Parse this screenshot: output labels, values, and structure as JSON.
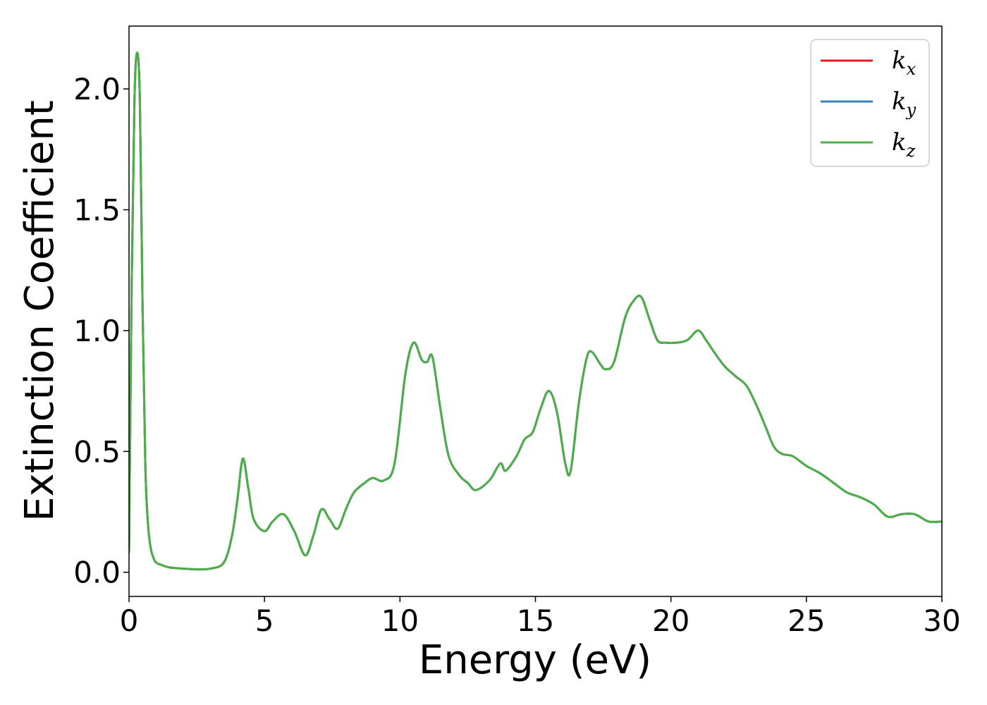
{
  "chart_data": {
    "type": "line",
    "xlabel": "Energy (eV)",
    "ylabel": "Extinction Coefficient",
    "xlim": [
      0,
      30
    ],
    "ylim": [
      -0.1,
      2.26
    ],
    "xticks": [
      0,
      5,
      10,
      15,
      20,
      25,
      30
    ],
    "xtick_labels": [
      "0",
      "5",
      "10",
      "15",
      "20",
      "25",
      "30"
    ],
    "yticks": [
      0.0,
      0.5,
      1.0,
      1.5,
      2.0
    ],
    "ytick_labels": [
      "0.0",
      "0.5",
      "1.0",
      "1.5",
      "2.0"
    ],
    "grid": false,
    "legend_position": "top-right",
    "series": [
      {
        "name": "k_x",
        "label_base": "k",
        "label_sub": "x",
        "color": "#e41a1c"
      },
      {
        "name": "k_y",
        "label_base": "k",
        "label_sub": "y",
        "color": "#377eb8"
      },
      {
        "name": "k_z",
        "label_base": "k",
        "label_sub": "z",
        "color": "#4daf4a"
      }
    ],
    "x": [
      0.0,
      0.1,
      0.2,
      0.3,
      0.4,
      0.5,
      0.6,
      0.7,
      0.8,
      0.9,
      1.0,
      1.2,
      1.5,
      2.0,
      2.5,
      3.0,
      3.5,
      3.8,
      4.0,
      4.2,
      4.4,
      4.6,
      5.0,
      5.3,
      5.7,
      6.1,
      6.5,
      6.8,
      7.1,
      7.4,
      7.7,
      8.0,
      8.3,
      8.7,
      9.0,
      9.4,
      9.8,
      10.2,
      10.5,
      10.8,
      11.0,
      11.2,
      11.5,
      11.8,
      12.2,
      12.5,
      12.8,
      13.3,
      13.7,
      13.9,
      14.3,
      14.6,
      14.9,
      15.2,
      15.5,
      15.8,
      16.1,
      16.3,
      16.6,
      16.9,
      17.1,
      17.4,
      17.6,
      17.9,
      18.3,
      18.6,
      18.9,
      19.2,
      19.5,
      19.8,
      20.2,
      20.6,
      21.0,
      21.3,
      21.6,
      22.0,
      22.4,
      22.8,
      23.2,
      23.5,
      23.8,
      24.1,
      24.5,
      25.0,
      25.5,
      26.0,
      26.5,
      27.0,
      27.5,
      28.0,
      28.5,
      29.0,
      29.5,
      30.0
    ],
    "y": [
      0.08,
      1.2,
      1.95,
      2.15,
      1.95,
      1.1,
      0.45,
      0.2,
      0.1,
      0.06,
      0.04,
      0.03,
      0.02,
      0.015,
      0.012,
      0.015,
      0.04,
      0.15,
      0.3,
      0.47,
      0.35,
      0.22,
      0.17,
      0.21,
      0.24,
      0.17,
      0.07,
      0.15,
      0.26,
      0.22,
      0.18,
      0.26,
      0.33,
      0.37,
      0.39,
      0.38,
      0.45,
      0.82,
      0.95,
      0.88,
      0.87,
      0.89,
      0.67,
      0.48,
      0.4,
      0.37,
      0.34,
      0.38,
      0.45,
      0.42,
      0.48,
      0.55,
      0.58,
      0.68,
      0.75,
      0.66,
      0.45,
      0.42,
      0.7,
      0.89,
      0.91,
      0.86,
      0.84,
      0.87,
      1.05,
      1.12,
      1.14,
      1.05,
      0.96,
      0.95,
      0.95,
      0.96,
      1.0,
      0.96,
      0.91,
      0.85,
      0.81,
      0.77,
      0.68,
      0.6,
      0.52,
      0.49,
      0.48,
      0.44,
      0.41,
      0.37,
      0.33,
      0.31,
      0.28,
      0.23,
      0.24,
      0.24,
      0.21,
      0.21
    ]
  }
}
